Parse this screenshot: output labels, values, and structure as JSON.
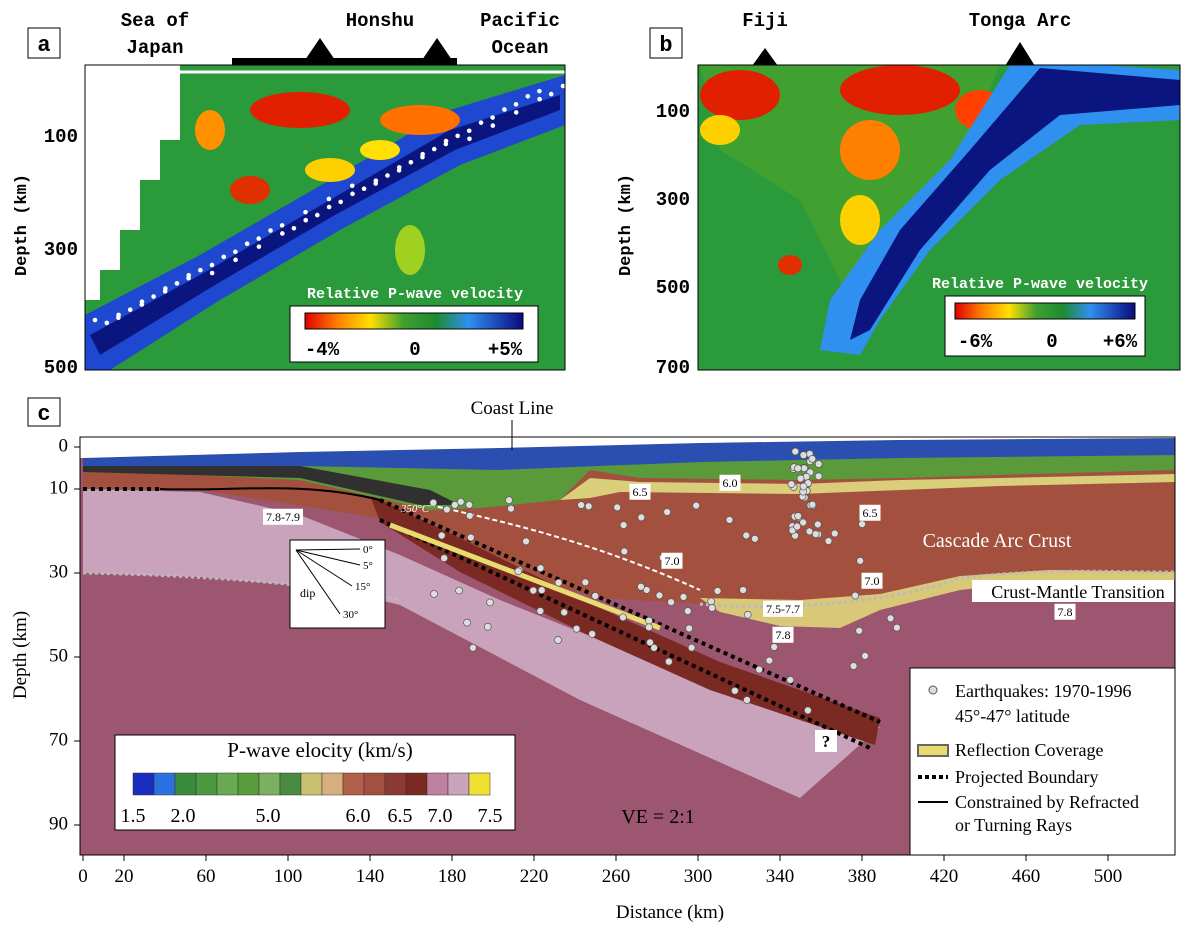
{
  "panel_a": {
    "label": "a",
    "top_labels": [
      "Sea of",
      "Japan",
      "Honshu",
      "Pacific",
      "Ocean"
    ],
    "y_axis_title": "Depth (km)",
    "y_ticks": [
      "100",
      "300",
      "500"
    ],
    "colorbar": {
      "title": "Relative P-wave velocity",
      "labels": [
        "-4%",
        "0",
        "+5%"
      ]
    }
  },
  "panel_b": {
    "label": "b",
    "top_labels": [
      "Fiji",
      "Tonga Arc"
    ],
    "y_axis_title": "Depth (km)",
    "y_ticks": [
      "100",
      "300",
      "500",
      "700"
    ],
    "colorbar": {
      "title": "Relative P-wave velocity",
      "labels": [
        "-6%",
        "0",
        "+6%"
      ]
    }
  },
  "panel_c": {
    "label": "c",
    "x_axis_title": "Distance (km)",
    "y_axis_title": "Depth (km)",
    "x_ticks": [
      "0",
      "20",
      "60",
      "100",
      "140",
      "180",
      "220",
      "260",
      "300",
      "340",
      "380",
      "420",
      "460",
      "500"
    ],
    "y_ticks": [
      "0",
      "10",
      "30",
      "50",
      "70",
      "90"
    ],
    "annotations": {
      "coast_line": "Coast Line",
      "arc_crust": "Cascade Arc Crust",
      "transition": "Crust-Mantle Transition",
      "isotherm": "350°C",
      "unknown": "?",
      "ve": "VE = 2:1"
    },
    "velocity_labels": [
      "7.8-7.9",
      "6.5",
      "6.0",
      "6.5",
      "7.0",
      "7.0",
      "7.5-7.7",
      "7.8",
      "7.8"
    ],
    "dip": {
      "title": "dip",
      "angles": [
        "0°",
        "5°",
        "15°",
        "30°"
      ]
    },
    "colorbar": {
      "title": "P-wave elocity (km/s)",
      "labels": [
        "1.5",
        "2.0",
        "5.0",
        "6.0",
        "6.5",
        "7.0",
        "7.5"
      ]
    },
    "legend": [
      "Earthquakes: 1970-1996",
      "45°-47° latitude",
      "Reflection Coverage",
      "Projected Boundary",
      "Constrained by Refracted",
      "or Turning Rays"
    ]
  }
}
